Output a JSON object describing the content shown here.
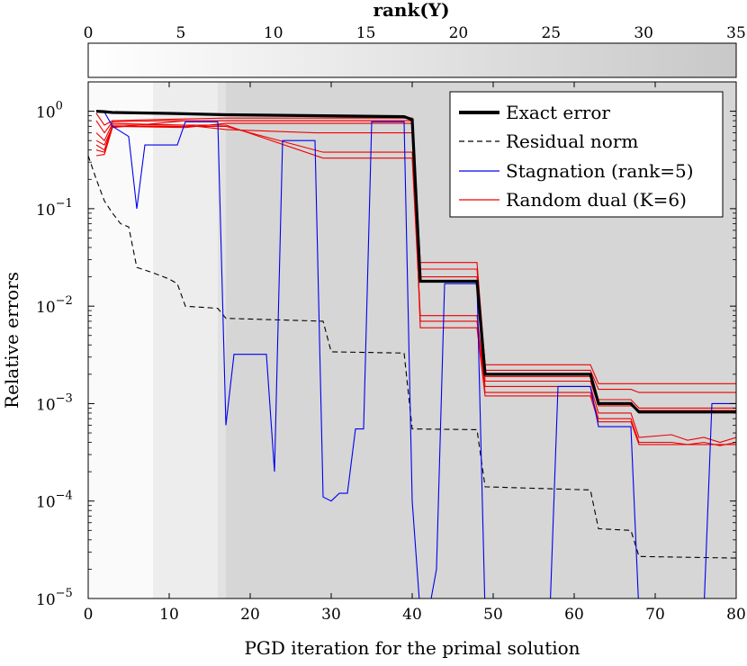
{
  "chart_data": {
    "type": "line",
    "xlabel": "PGD iteration for the primal solution",
    "ylabel": "Relative errors",
    "xlim": [
      0,
      80
    ],
    "ylim": [
      1e-05,
      2
    ],
    "y_scale": "log",
    "x_ticks": [
      "0",
      "10",
      "20",
      "30",
      "40",
      "50",
      "60",
      "70",
      "80"
    ],
    "y_ticks": [
      {
        "base": "10",
        "exp": "0",
        "value": 1
      },
      {
        "base": "10",
        "exp": "−1",
        "value": 0.1
      },
      {
        "base": "10",
        "exp": "−2",
        "value": 0.01
      },
      {
        "base": "10",
        "exp": "−3",
        "value": 0.001
      },
      {
        "base": "10",
        "exp": "−4",
        "value": 0.0001
      },
      {
        "base": "10",
        "exp": "−5",
        "value": 1e-05
      }
    ],
    "legend_position": "top-right",
    "legend": [
      {
        "label": "Exact error",
        "color": "#000000",
        "style": "solid-thick"
      },
      {
        "label": "Residual norm",
        "color": "#000000",
        "style": "dashed"
      },
      {
        "label": "Stagnation (rank=5)",
        "color": "#0000ee",
        "style": "solid"
      },
      {
        "label": "Random dual (K=6)",
        "color": "#ee0000",
        "style": "solid"
      }
    ],
    "rank_axis": {
      "title": "rank(Y)",
      "ticks": [
        "0",
        "5",
        "10",
        "15",
        "20",
        "25",
        "30",
        "35"
      ],
      "range": [
        0,
        35
      ],
      "colorbar": [
        "#ffffff",
        "#c8c8c8"
      ]
    },
    "background_bands": [
      {
        "x": [
          0,
          8
        ],
        "color": "#fafafa"
      },
      {
        "x": [
          8,
          16
        ],
        "color": "#ededed"
      },
      {
        "x": [
          16,
          17
        ],
        "color": "#e2e2e2"
      },
      {
        "x": [
          17,
          80
        ],
        "color": "#d6d6d6"
      }
    ],
    "series": {
      "exact": [
        [
          1,
          1.0
        ],
        [
          2,
          0.99
        ],
        [
          3,
          0.97
        ],
        [
          10,
          0.95
        ],
        [
          17,
          0.92
        ],
        [
          29,
          0.9
        ],
        [
          39,
          0.88
        ],
        [
          40,
          0.82
        ],
        [
          41,
          0.018
        ],
        [
          48,
          0.018
        ],
        [
          49,
          0.002
        ],
        [
          62,
          0.002
        ],
        [
          63,
          0.001
        ],
        [
          67,
          0.001
        ],
        [
          68,
          0.00082
        ],
        [
          80,
          0.00082
        ]
      ],
      "residual": [
        [
          0,
          0.35
        ],
        [
          1,
          0.2
        ],
        [
          2,
          0.12
        ],
        [
          3,
          0.09
        ],
        [
          4,
          0.07
        ],
        [
          5,
          0.065
        ],
        [
          6,
          0.025
        ],
        [
          8,
          0.022
        ],
        [
          10,
          0.019
        ],
        [
          11,
          0.017
        ],
        [
          12,
          0.01
        ],
        [
          16,
          0.0095
        ],
        [
          17,
          0.0075
        ],
        [
          29,
          0.007
        ],
        [
          30,
          0.0034
        ],
        [
          39,
          0.0033
        ],
        [
          40,
          0.00055
        ],
        [
          48,
          0.00054
        ],
        [
          49,
          0.00014
        ],
        [
          62,
          0.00013
        ],
        [
          63,
          5.2e-05
        ],
        [
          67,
          5e-05
        ],
        [
          68,
          2.7e-05
        ],
        [
          80,
          2.6e-05
        ]
      ],
      "stagnation": [
        [
          1,
          1.0
        ],
        [
          2,
          0.98
        ],
        [
          3,
          0.7
        ],
        [
          5,
          0.55
        ],
        [
          6,
          0.1
        ],
        [
          7,
          0.45
        ],
        [
          11,
          0.45
        ],
        [
          12,
          0.78
        ],
        [
          16,
          0.78
        ],
        [
          17,
          0.0006
        ],
        [
          18,
          0.0032
        ],
        [
          22,
          0.0032
        ],
        [
          23,
          0.0002
        ],
        [
          24,
          0.5
        ],
        [
          28,
          0.5
        ],
        [
          29,
          0.00011
        ],
        [
          30,
          0.0001
        ],
        [
          31,
          0.00012
        ],
        [
          32,
          0.00012
        ],
        [
          33,
          0.00055
        ],
        [
          34,
          0.00055
        ],
        [
          35,
          0.78
        ],
        [
          39,
          0.78
        ],
        [
          40,
          0.0001
        ],
        [
          41,
          7e-06
        ],
        [
          42,
          7e-06
        ],
        [
          43,
          2e-05
        ],
        [
          44,
          0.017
        ],
        [
          48,
          0.017
        ],
        [
          49,
          7e-06
        ],
        [
          57,
          7e-06
        ],
        [
          58,
          0.0015
        ],
        [
          62,
          0.0015
        ],
        [
          63,
          0.00058
        ],
        [
          67,
          0.00058
        ],
        [
          68,
          7e-06
        ],
        [
          76,
          7e-06
        ],
        [
          77,
          0.001
        ],
        [
          80,
          0.001
        ]
      ],
      "random_dual": [
        [
          [
            1,
            0.95
          ],
          [
            2,
            0.72
          ],
          [
            3,
            0.8
          ],
          [
            8,
            0.82
          ],
          [
            17,
            0.85
          ],
          [
            39,
            0.85
          ],
          [
            40,
            0.85
          ],
          [
            41,
            0.028
          ],
          [
            48,
            0.028
          ],
          [
            49,
            0.0025
          ],
          [
            62,
            0.0025
          ],
          [
            63,
            0.0016
          ],
          [
            67,
            0.0016
          ],
          [
            68,
            0.0016
          ],
          [
            80,
            0.0016
          ]
        ],
        [
          [
            1,
            0.8
          ],
          [
            2,
            0.6
          ],
          [
            3,
            0.78
          ],
          [
            10,
            0.8
          ],
          [
            17,
            0.8
          ],
          [
            39,
            0.8
          ],
          [
            40,
            0.8
          ],
          [
            41,
            0.024
          ],
          [
            48,
            0.024
          ],
          [
            49,
            0.0022
          ],
          [
            62,
            0.0022
          ],
          [
            63,
            0.0014
          ],
          [
            67,
            0.0014
          ],
          [
            68,
            0.0013
          ],
          [
            80,
            0.0013
          ]
        ],
        [
          [
            1,
            0.6
          ],
          [
            2,
            0.5
          ],
          [
            3,
            0.75
          ],
          [
            12,
            0.72
          ],
          [
            17,
            0.65
          ],
          [
            28,
            0.6
          ],
          [
            29,
            0.6
          ],
          [
            40,
            0.6
          ],
          [
            41,
            0.02
          ],
          [
            48,
            0.02
          ],
          [
            49,
            0.0019
          ],
          [
            62,
            0.0019
          ],
          [
            63,
            0.0011
          ],
          [
            67,
            0.0011
          ],
          [
            68,
            0.0009
          ],
          [
            80,
            0.0009
          ]
        ],
        [
          [
            1,
            0.5
          ],
          [
            2,
            0.45
          ],
          [
            3,
            0.7
          ],
          [
            12,
            0.7
          ],
          [
            17,
            0.7
          ],
          [
            29,
            0.38
          ],
          [
            40,
            0.38
          ],
          [
            41,
            0.018
          ],
          [
            48,
            0.018
          ],
          [
            49,
            0.0017
          ],
          [
            62,
            0.0017
          ],
          [
            63,
            0.00095
          ],
          [
            67,
            0.00095
          ],
          [
            68,
            0.00085
          ],
          [
            80,
            0.00085
          ]
        ],
        [
          [
            1,
            0.45
          ],
          [
            2,
            0.4
          ],
          [
            3,
            0.72
          ],
          [
            12,
            0.72
          ],
          [
            17,
            0.72
          ],
          [
            29,
            0.33
          ],
          [
            40,
            0.33
          ],
          [
            41,
            0.008
          ],
          [
            48,
            0.008
          ],
          [
            49,
            0.0015
          ],
          [
            62,
            0.0015
          ],
          [
            63,
            0.0008
          ],
          [
            67,
            0.0008
          ],
          [
            68,
            0.00045
          ],
          [
            72,
            0.00048
          ],
          [
            74,
            0.00042
          ],
          [
            76,
            0.00045
          ],
          [
            78,
            0.0004
          ],
          [
            80,
            0.00045
          ]
        ],
        [
          [
            1,
            0.4
          ],
          [
            2,
            0.38
          ],
          [
            3,
            0.7
          ],
          [
            12,
            0.68
          ],
          [
            17,
            0.75
          ],
          [
            29,
            0.75
          ],
          [
            40,
            0.75
          ],
          [
            41,
            0.007
          ],
          [
            48,
            0.007
          ],
          [
            49,
            0.0013
          ],
          [
            62,
            0.0013
          ],
          [
            63,
            0.0007
          ],
          [
            67,
            0.0007
          ],
          [
            68,
            0.0004
          ],
          [
            72,
            0.0004
          ],
          [
            74,
            0.00038
          ],
          [
            76,
            0.0004
          ],
          [
            78,
            0.00037
          ],
          [
            80,
            0.0004
          ]
        ],
        [
          [
            1,
            0.35
          ],
          [
            2,
            0.36
          ],
          [
            3,
            0.68
          ],
          [
            12,
            0.8
          ],
          [
            17,
            0.8
          ],
          [
            29,
            0.8
          ],
          [
            40,
            0.8
          ],
          [
            41,
            0.006
          ],
          [
            48,
            0.006
          ],
          [
            49,
            0.0012
          ],
          [
            62,
            0.0012
          ],
          [
            63,
            0.00065
          ],
          [
            67,
            0.00065
          ],
          [
            68,
            0.00038
          ],
          [
            80,
            0.00038
          ]
        ]
      ]
    }
  }
}
